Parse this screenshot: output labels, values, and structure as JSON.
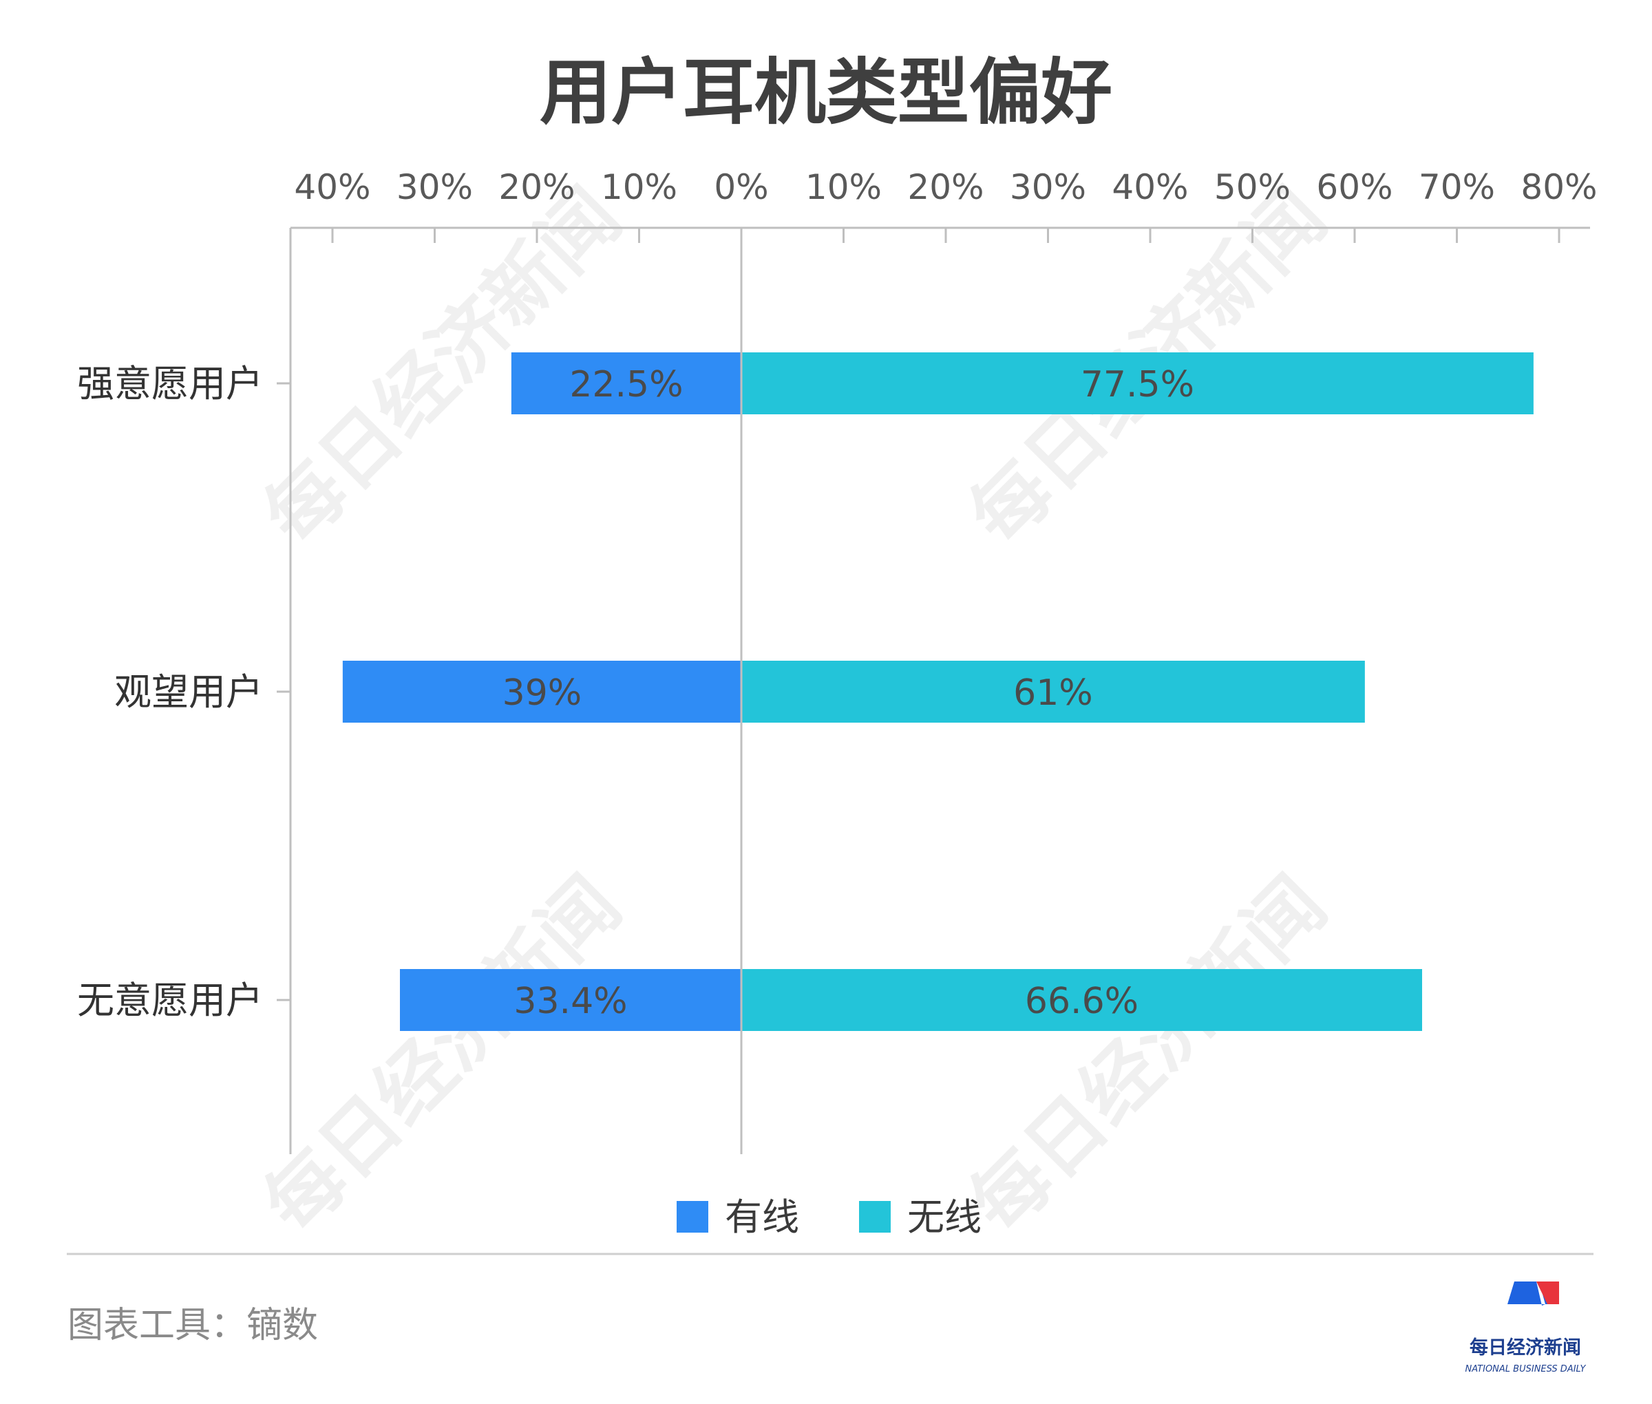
{
  "chart_data": {
    "type": "bar",
    "orientation": "horizontal-diverging",
    "title": "用户耳机类型偏好",
    "categories": [
      "强意愿用户",
      "观望用户",
      "无意愿用户"
    ],
    "series": [
      {
        "name": "有线",
        "values": [
          22.5,
          39,
          33.4
        ],
        "labels": [
          "22.5%",
          "39%",
          "33.4%"
        ],
        "color": "#2f8cf5",
        "direction": "left"
      },
      {
        "name": "无线",
        "values": [
          77.5,
          61,
          66.6
        ],
        "labels": [
          "77.5%",
          "61%",
          "66.6%"
        ],
        "color": "#23c4d9",
        "direction": "right"
      }
    ],
    "xlim": [
      -40,
      80
    ],
    "ticks": [
      -40,
      -30,
      -20,
      -10,
      0,
      10,
      20,
      30,
      40,
      50,
      60,
      70,
      80
    ],
    "tick_labels": [
      "40%",
      "30%",
      "20%",
      "10%",
      "0%",
      "10%",
      "20%",
      "30%",
      "40%",
      "50%",
      "60%",
      "70%",
      "80%"
    ],
    "axis_position": "top",
    "grid": false,
    "legend": "bottom-center"
  },
  "watermark": "每日经济新闻",
  "footer": {
    "source": "图表工具：镝数",
    "logo_cn": "每日经济新闻",
    "logo_en": "NATIONAL BUSINESS DAILY"
  },
  "colors": {
    "wired": "#2f8cf5",
    "wireless": "#23c4d9",
    "axis": "#bfbfbf",
    "logo_blue": "#1e63e0",
    "logo_red": "#e8343c"
  }
}
